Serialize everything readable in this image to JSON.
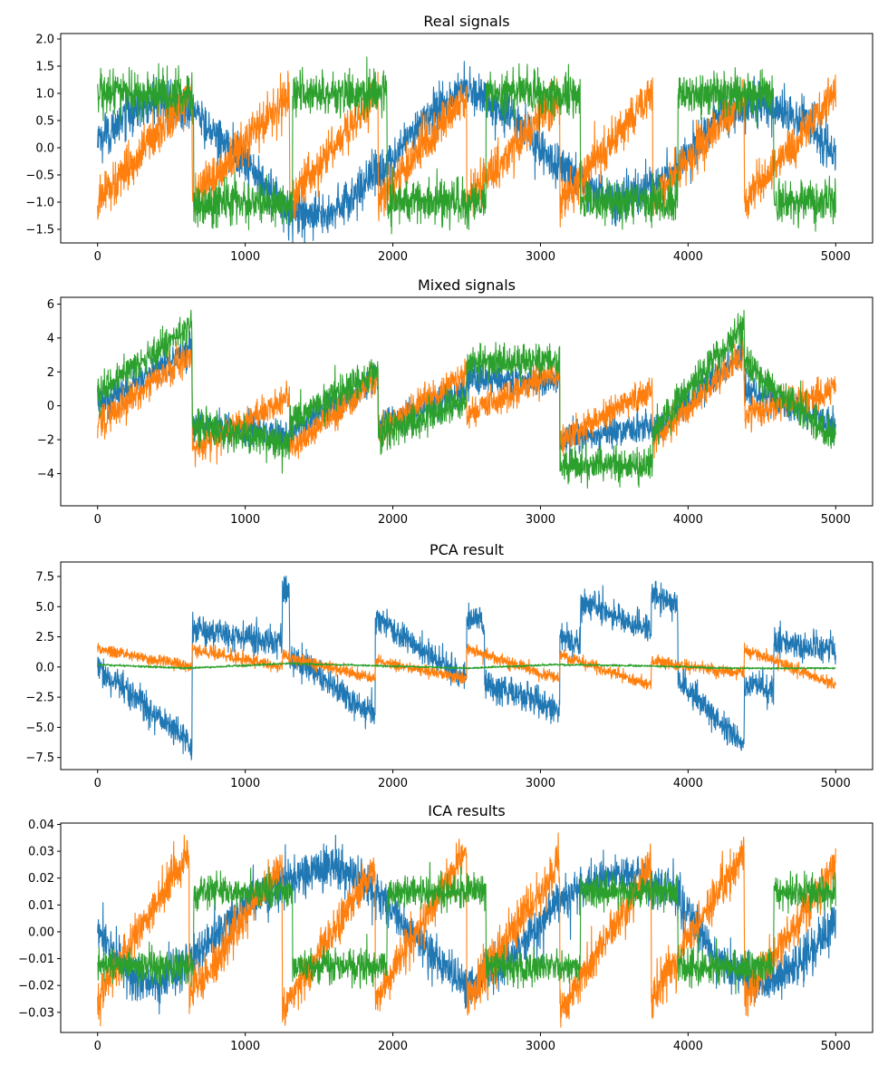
{
  "chart_data": [
    {
      "type": "line",
      "title": "Real signals",
      "xlim": [
        -250,
        5250
      ],
      "ylim": [
        -1.75,
        2.1
      ],
      "xticks": [
        0,
        1000,
        2000,
        3000,
        4000,
        5000
      ],
      "xtick_labels": [
        "0",
        "1000",
        "2000",
        "3000",
        "4000",
        "5000"
      ],
      "yticks": [
        -1.5,
        -1.0,
        -0.5,
        0.0,
        0.5,
        1.0,
        1.5,
        2.0
      ],
      "ytick_labels": [
        "−1.5",
        "−1.0",
        "−0.5",
        "0.0",
        "0.5",
        "1.0",
        "1.5",
        "2.0"
      ],
      "grid": false,
      "series": [
        {
          "color": "#1f77b4",
          "noise": 0.2,
          "x": [
            0,
            200,
            400,
            640,
            1000,
            1300,
            1600,
            1900,
            2200,
            2500,
            2800,
            3100,
            3500,
            3900,
            4200,
            4500,
            4800,
            5000
          ],
          "y": [
            0.1,
            0.6,
            0.9,
            0.7,
            -0.3,
            -1.2,
            -1.2,
            -0.5,
            0.5,
            1.1,
            0.6,
            -0.3,
            -1.0,
            -0.5,
            0.6,
            0.8,
            0.5,
            -0.2
          ]
        },
        {
          "color": "#ff7f0e",
          "noise": 0.2,
          "x": [
            0,
            640,
            641,
            1300,
            1301,
            1900,
            1901,
            2500,
            2501,
            3130,
            3131,
            3760,
            3761,
            4380,
            4381,
            5000
          ],
          "y": [
            -1.0,
            1.0,
            -1.0,
            1.0,
            -1.0,
            1.0,
            -1.0,
            1.0,
            -1.0,
            1.0,
            -1.0,
            1.0,
            -1.0,
            1.0,
            -1.0,
            1.0
          ]
        },
        {
          "color": "#2ca02c",
          "noise": 0.2,
          "x": [
            0,
            650,
            651,
            1320,
            1321,
            1960,
            1961,
            2630,
            2631,
            3270,
            3271,
            3930,
            3931,
            4580,
            4581,
            5000
          ],
          "y": [
            1.0,
            1.0,
            -1.0,
            -1.0,
            1.0,
            1.0,
            -1.0,
            -1.0,
            1.0,
            1.0,
            -1.0,
            -1.0,
            1.0,
            1.0,
            -1.0,
            -1.0
          ]
        }
      ]
    },
    {
      "type": "line",
      "title": "Mixed signals",
      "xlim": [
        -250,
        5250
      ],
      "ylim": [
        -5.9,
        6.4
      ],
      "xticks": [
        0,
        1000,
        2000,
        3000,
        4000,
        5000
      ],
      "xtick_labels": [
        "0",
        "1000",
        "2000",
        "3000",
        "4000",
        "5000"
      ],
      "yticks": [
        -4,
        -2,
        0,
        2,
        4,
        6
      ],
      "ytick_labels": [
        "−4",
        "−2",
        "0",
        "2",
        "4",
        "6"
      ],
      "grid": false,
      "series": [
        {
          "color": "#1f77b4",
          "noise": 0.45,
          "x": [
            0,
            640,
            641,
            1300,
            1301,
            1900,
            1901,
            2500,
            2501,
            3130,
            3131,
            3760,
            3761,
            4380,
            4381,
            5000
          ],
          "y": [
            0.0,
            3.5,
            -1.0,
            -1.8,
            -1.5,
            1.5,
            -1.0,
            0.8,
            1.5,
            1.5,
            -2.0,
            -1.2,
            -1.6,
            3.2,
            1.0,
            -1.0
          ]
        },
        {
          "color": "#ff7f0e",
          "noise": 0.45,
          "x": [
            0,
            640,
            641,
            1300,
            1301,
            1900,
            1901,
            2500,
            2501,
            3130,
            3131,
            3760,
            3761,
            4380,
            4381,
            5000
          ],
          "y": [
            -1.0,
            3.0,
            -2.5,
            0.5,
            -2.5,
            1.5,
            -1.5,
            2.0,
            -0.5,
            2.0,
            -2.0,
            1.0,
            -2.0,
            3.0,
            -0.5,
            1.0
          ]
        },
        {
          "color": "#2ca02c",
          "noise": 0.5,
          "x": [
            0,
            640,
            641,
            1300,
            1301,
            1900,
            1901,
            2500,
            2501,
            3130,
            3131,
            3760,
            3761,
            4380,
            4381,
            5000
          ],
          "y": [
            0.8,
            4.8,
            -1.2,
            -2.2,
            -1.0,
            2.2,
            -1.8,
            0.2,
            2.6,
            2.6,
            -3.5,
            -3.5,
            -1.5,
            4.8,
            2.5,
            -2.0
          ]
        }
      ]
    },
    {
      "type": "line",
      "title": "PCA result",
      "xlim": [
        -250,
        5250
      ],
      "ylim": [
        -8.5,
        8.7
      ],
      "xticks": [
        0,
        1000,
        2000,
        3000,
        4000,
        5000
      ],
      "xtick_labels": [
        "0",
        "1000",
        "2000",
        "3000",
        "4000",
        "5000"
      ],
      "yticks": [
        -7.5,
        -5.0,
        -2.5,
        0.0,
        2.5,
        5.0,
        7.5
      ],
      "ytick_labels": [
        "−7.5",
        "−5.0",
        "−2.5",
        "0.0",
        "2.5",
        "5.0",
        "7.5"
      ],
      "grid": false,
      "series": [
        {
          "color": "#1f77b4",
          "noise": 0.6,
          "x": [
            0,
            640,
            641,
            1250,
            1251,
            1300,
            1301,
            1880,
            1881,
            2500,
            2501,
            2620,
            2621,
            3130,
            3131,
            3270,
            3271,
            3750,
            3751,
            3930,
            3931,
            4380,
            4381,
            4580,
            4581,
            5000
          ],
          "y": [
            0.0,
            -6.5,
            3.0,
            2.0,
            6.5,
            6.0,
            1.0,
            -4.0,
            4.0,
            -1.0,
            4.0,
            3.5,
            -1.5,
            -3.5,
            2.5,
            2.0,
            5.5,
            3.0,
            6.0,
            5.0,
            -1.0,
            -6.5,
            -1.5,
            -2.0,
            2.0,
            1.5
          ]
        },
        {
          "color": "#ff7f0e",
          "noise": 0.25,
          "x": [
            0,
            640,
            641,
            1250,
            1251,
            1880,
            1881,
            2500,
            2501,
            3130,
            3131,
            3750,
            3751,
            4380,
            4381,
            5000
          ],
          "y": [
            1.5,
            0.0,
            1.5,
            0.0,
            1.0,
            -1.0,
            0.5,
            -1.0,
            1.5,
            -1.0,
            1.0,
            -1.5,
            0.5,
            -0.5,
            1.5,
            -1.5
          ]
        },
        {
          "color": "#2ca02c",
          "noise": 0.04,
          "x": [
            0,
            600,
            1300,
            1900,
            2500,
            3100,
            3700,
            4300,
            5000
          ],
          "y": [
            0.2,
            -0.1,
            0.3,
            0.1,
            -0.1,
            0.2,
            0.1,
            -0.1,
            -0.1
          ]
        }
      ]
    },
    {
      "type": "line",
      "title": "ICA results",
      "xlim": [
        -250,
        5250
      ],
      "ylim": [
        -0.0375,
        0.0405
      ],
      "xticks": [
        0,
        1000,
        2000,
        3000,
        4000,
        5000
      ],
      "xtick_labels": [
        "0",
        "1000",
        "2000",
        "3000",
        "4000",
        "5000"
      ],
      "yticks": [
        -0.03,
        -0.02,
        -0.01,
        0.0,
        0.01,
        0.02,
        0.03,
        0.04
      ],
      "ytick_labels": [
        "−0.03",
        "−0.02",
        "−0.01",
        "0.00",
        "0.01",
        "0.02",
        "0.03",
        "0.04"
      ],
      "grid": false,
      "series": [
        {
          "color": "#1f77b4",
          "noise": 0.004,
          "x": [
            0,
            200,
            400,
            640,
            1000,
            1300,
            1600,
            1900,
            2200,
            2500,
            2800,
            3100,
            3500,
            3900,
            4200,
            4500,
            4800,
            5000
          ],
          "y": [
            0.002,
            -0.015,
            -0.02,
            -0.01,
            0.01,
            0.02,
            0.025,
            0.015,
            -0.005,
            -0.02,
            -0.01,
            0.01,
            0.022,
            0.015,
            -0.01,
            -0.02,
            -0.01,
            0.005
          ]
        },
        {
          "color": "#ff7f0e",
          "noise": 0.004,
          "x": [
            0,
            620,
            621,
            1250,
            1251,
            1880,
            1881,
            2500,
            2501,
            3130,
            3131,
            3750,
            3751,
            4380,
            4381,
            5000
          ],
          "y": [
            -0.025,
            0.03,
            -0.025,
            0.025,
            -0.03,
            0.025,
            -0.025,
            0.03,
            -0.025,
            0.025,
            -0.03,
            0.025,
            -0.025,
            0.03,
            -0.025,
            0.025
          ]
        },
        {
          "color": "#2ca02c",
          "noise": 0.003,
          "x": [
            0,
            650,
            651,
            1320,
            1321,
            1960,
            1961,
            2630,
            2631,
            3270,
            3271,
            3930,
            3931,
            4580,
            4581,
            5000
          ],
          "y": [
            -0.013,
            -0.013,
            0.015,
            0.015,
            -0.013,
            -0.013,
            0.015,
            0.015,
            -0.013,
            -0.013,
            0.015,
            0.015,
            -0.013,
            -0.013,
            0.015,
            0.015
          ]
        }
      ]
    }
  ]
}
